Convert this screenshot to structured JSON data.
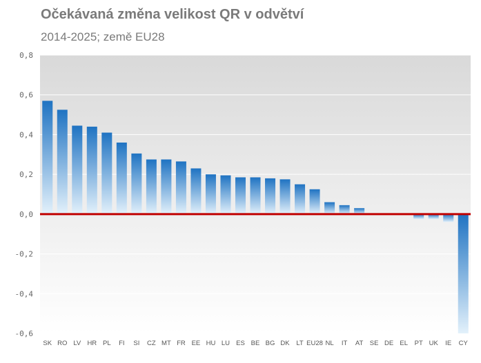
{
  "chart_data": {
    "type": "bar",
    "title": "Očekávaná změna velikost QR v odvětví",
    "subtitle": "2014-2025; země EU28",
    "categories": [
      "SK",
      "RO",
      "LV",
      "HR",
      "PL",
      "FI",
      "SI",
      "CZ",
      "MT",
      "FR",
      "EE",
      "HU",
      "LU",
      "ES",
      "BE",
      "BG",
      "DK",
      "LT",
      "EU28",
      "NL",
      "IT",
      "AT",
      "SE",
      "DE",
      "EL",
      "PT",
      "UK",
      "IE",
      "CY"
    ],
    "values": [
      0.57,
      0.525,
      0.445,
      0.44,
      0.41,
      0.36,
      0.305,
      0.275,
      0.275,
      0.265,
      0.23,
      0.2,
      0.195,
      0.185,
      0.185,
      0.18,
      0.175,
      0.15,
      0.125,
      0.06,
      0.045,
      0.03,
      0.0,
      0.0,
      0.0,
      -0.025,
      -0.025,
      -0.04,
      -0.6
    ],
    "ylim": [
      -0.6,
      0.8
    ],
    "yticks": [
      "0,8",
      "0,6",
      "0,4",
      "0,2",
      "0,0",
      "-0,2",
      "-0,4",
      "-0,6"
    ],
    "ytick_values": [
      0.8,
      0.6,
      0.4,
      0.2,
      0.0,
      -0.2,
      -0.4,
      -0.6
    ],
    "xlabel": "",
    "ylabel": "",
    "grid": true,
    "colors": {
      "bar_dark": "#1f73c2",
      "bar_light": "#e3f1fb",
      "zero_line": "#c00000",
      "grid": "#ffffff",
      "plot_bg_top": "#d9d9d9",
      "plot_bg_bottom": "#ffffff"
    }
  }
}
